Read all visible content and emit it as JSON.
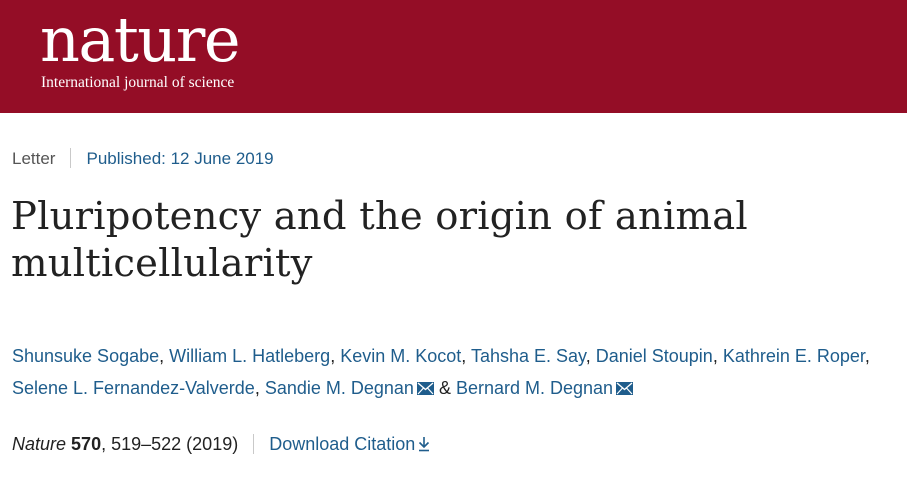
{
  "header": {
    "logo": "nature",
    "tagline": "International journal of science",
    "background_color": "#940d26"
  },
  "meta": {
    "type": "Letter",
    "published": "Published: 12 June 2019"
  },
  "article": {
    "title": "Pluripotency and the origin of animal multicellularity",
    "authors": [
      "Shunsuke Sogabe",
      "William L. Hatleberg",
      "Kevin M. Kocot",
      "Tahsha E. Say",
      "Daniel Stoupin",
      "Kathrein E. Roper",
      "Selene L. Fernandez-Valverde",
      "Sandie M. Degnan",
      "Bernard M. Degnan"
    ],
    "author_separator": ", ",
    "last_separator": " & ",
    "corresponding_icon": "envelope-icon"
  },
  "citation": {
    "journal": "Nature",
    "volume": "570",
    "pages_year": ", 519–522 (2019)",
    "download_label": "Download Citation",
    "download_icon": "download-arrow-icon"
  },
  "colors": {
    "link": "#1f5d8c",
    "text": "#222222"
  }
}
